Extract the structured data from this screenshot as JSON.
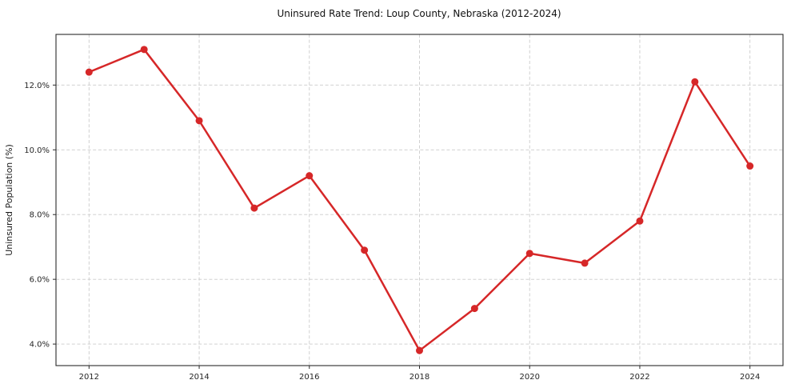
{
  "chart_data": {
    "type": "line",
    "title": "Uninsured Rate Trend: Loup County, Nebraska (2012-2024)",
    "xlabel": "",
    "ylabel": "Uninsured Population (%)",
    "x": [
      2012,
      2013,
      2014,
      2015,
      2016,
      2017,
      2018,
      2019,
      2020,
      2021,
      2022,
      2023,
      2024
    ],
    "values": [
      12.4,
      13.1,
      10.9,
      8.2,
      9.2,
      6.9,
      3.8,
      5.1,
      6.8,
      6.5,
      7.8,
      12.1,
      9.5
    ],
    "xlim": [
      2011.4,
      2024.6
    ],
    "ylim": [
      3.335,
      13.565
    ],
    "xticks": {
      "values": [
        2012,
        2014,
        2016,
        2018,
        2020,
        2022,
        2024
      ],
      "labels": [
        "2012",
        "2014",
        "2016",
        "2018",
        "2020",
        "2022",
        "2024"
      ]
    },
    "yticks": {
      "values": [
        4,
        6,
        8,
        10,
        12
      ],
      "labels": [
        "4.0%",
        "6.0%",
        "8.0%",
        "10.0%",
        "12.0%"
      ]
    },
    "grid": {
      "visible": true,
      "style": "dashed",
      "x_on_labeled_ticks_only": true
    },
    "legend": {
      "visible": false
    },
    "colors": {
      "line": "#d62728",
      "marker": "#d62728",
      "grid": "#cbcbcb",
      "spine": "#2a2a2a",
      "tick": "#2a2a2a",
      "background": "#ffffff"
    },
    "marker": "circle"
  }
}
